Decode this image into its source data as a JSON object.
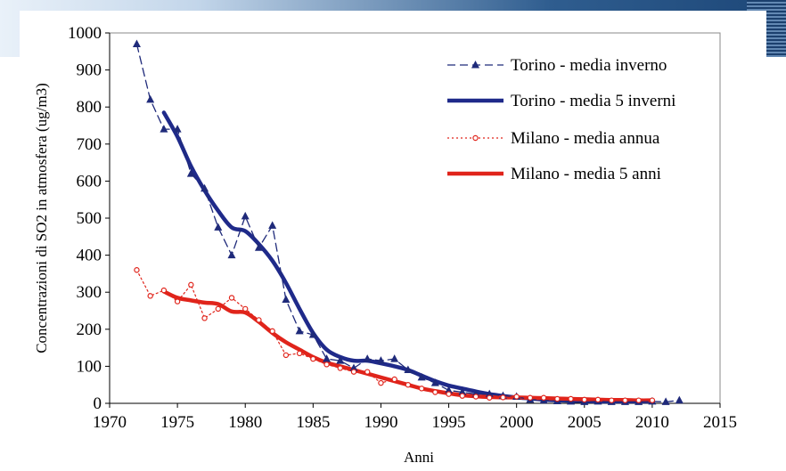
{
  "chart_data": {
    "type": "line",
    "title": "",
    "xlabel": "Anni",
    "ylabel": "Concentrazioni di SO2 in atmosfera (ug/m3)",
    "xlim": [
      1970,
      2015
    ],
    "ylim": [
      0,
      1000
    ],
    "x_ticks": [
      1970,
      1975,
      1980,
      1985,
      1990,
      1995,
      2000,
      2005,
      2010,
      2015
    ],
    "y_ticks": [
      0,
      100,
      200,
      300,
      400,
      500,
      600,
      700,
      800,
      900,
      1000
    ],
    "grid": false,
    "legend_position": "top-right",
    "series": [
      {
        "name": "Torino - media inverno",
        "color": "#1f2a7a",
        "style": "dashed",
        "marker": "triangle",
        "points": [
          [
            1972,
            970
          ],
          [
            1973,
            820
          ],
          [
            1974,
            740
          ],
          [
            1975,
            740
          ],
          [
            1976,
            620
          ],
          [
            1977,
            580
          ],
          [
            1978,
            475
          ],
          [
            1979,
            400
          ],
          [
            1980,
            505
          ],
          [
            1981,
            420
          ],
          [
            1982,
            480
          ],
          [
            1983,
            280
          ],
          [
            1984,
            195
          ],
          [
            1985,
            185
          ],
          [
            1986,
            120
          ],
          [
            1987,
            115
          ],
          [
            1988,
            95
          ],
          [
            1989,
            120
          ],
          [
            1990,
            115
          ],
          [
            1991,
            120
          ],
          [
            1992,
            90
          ],
          [
            1993,
            70
          ],
          [
            1994,
            55
          ],
          [
            1995,
            35
          ],
          [
            1996,
            30
          ],
          [
            1997,
            25
          ],
          [
            1998,
            25
          ],
          [
            1999,
            20
          ],
          [
            2000,
            18
          ],
          [
            2001,
            10
          ],
          [
            2002,
            8
          ],
          [
            2003,
            6
          ],
          [
            2004,
            5
          ],
          [
            2005,
            4
          ],
          [
            2006,
            5
          ],
          [
            2007,
            4
          ],
          [
            2008,
            4
          ],
          [
            2009,
            4
          ],
          [
            2010,
            5
          ],
          [
            2011,
            4
          ],
          [
            2012,
            8
          ]
        ]
      },
      {
        "name": "Torino - media 5 inverni",
        "color": "#1f2a8a",
        "style": "solid-thick",
        "marker": "none",
        "points": [
          [
            1974,
            785
          ],
          [
            1975,
            720
          ],
          [
            1976,
            640
          ],
          [
            1977,
            575
          ],
          [
            1978,
            520
          ],
          [
            1979,
            475
          ],
          [
            1980,
            465
          ],
          [
            1981,
            430
          ],
          [
            1982,
            385
          ],
          [
            1983,
            325
          ],
          [
            1984,
            255
          ],
          [
            1985,
            190
          ],
          [
            1986,
            145
          ],
          [
            1987,
            125
          ],
          [
            1988,
            115
          ],
          [
            1989,
            115
          ],
          [
            1990,
            108
          ],
          [
            1991,
            100
          ],
          [
            1992,
            90
          ],
          [
            1993,
            75
          ],
          [
            1994,
            60
          ],
          [
            1995,
            48
          ],
          [
            1996,
            40
          ],
          [
            1997,
            32
          ],
          [
            1998,
            25
          ],
          [
            1999,
            20
          ],
          [
            2000,
            16
          ],
          [
            2001,
            13
          ],
          [
            2002,
            10
          ],
          [
            2003,
            8
          ],
          [
            2004,
            7
          ],
          [
            2005,
            6
          ],
          [
            2006,
            5
          ],
          [
            2007,
            5
          ],
          [
            2008,
            5
          ],
          [
            2009,
            5
          ],
          [
            2010,
            5
          ]
        ]
      },
      {
        "name": "Milano - media annua",
        "color": "#e0241b",
        "style": "dotted",
        "marker": "circle",
        "points": [
          [
            1972,
            360
          ],
          [
            1973,
            290
          ],
          [
            1974,
            305
          ],
          [
            1975,
            275
          ],
          [
            1976,
            320
          ],
          [
            1977,
            230
          ],
          [
            1978,
            255
          ],
          [
            1979,
            285
          ],
          [
            1980,
            255
          ],
          [
            1981,
            225
          ],
          [
            1982,
            195
          ],
          [
            1983,
            130
          ],
          [
            1984,
            135
          ],
          [
            1985,
            120
          ],
          [
            1986,
            105
          ],
          [
            1987,
            95
          ],
          [
            1988,
            85
          ],
          [
            1989,
            85
          ],
          [
            1990,
            55
          ],
          [
            1991,
            65
          ],
          [
            1992,
            50
          ],
          [
            1993,
            40
          ],
          [
            1994,
            30
          ],
          [
            1995,
            25
          ],
          [
            1996,
            20
          ],
          [
            1997,
            18
          ],
          [
            1998,
            15
          ],
          [
            1999,
            16
          ],
          [
            2000,
            18
          ],
          [
            2001,
            15
          ],
          [
            2002,
            15
          ],
          [
            2003,
            12
          ],
          [
            2004,
            12
          ],
          [
            2005,
            10
          ],
          [
            2006,
            10
          ],
          [
            2007,
            8
          ],
          [
            2008,
            8
          ],
          [
            2009,
            8
          ],
          [
            2010,
            8
          ]
        ]
      },
      {
        "name": "Milano - media 5 anni",
        "color": "#e0241b",
        "style": "solid-thick",
        "marker": "none",
        "points": [
          [
            1974,
            302
          ],
          [
            1975,
            285
          ],
          [
            1976,
            278
          ],
          [
            1977,
            272
          ],
          [
            1978,
            268
          ],
          [
            1979,
            248
          ],
          [
            1980,
            245
          ],
          [
            1981,
            220
          ],
          [
            1982,
            190
          ],
          [
            1983,
            165
          ],
          [
            1984,
            145
          ],
          [
            1985,
            125
          ],
          [
            1986,
            110
          ],
          [
            1987,
            100
          ],
          [
            1988,
            90
          ],
          [
            1989,
            80
          ],
          [
            1990,
            70
          ],
          [
            1991,
            60
          ],
          [
            1992,
            50
          ],
          [
            1993,
            40
          ],
          [
            1994,
            33
          ],
          [
            1995,
            27
          ],
          [
            1996,
            22
          ],
          [
            1997,
            19
          ],
          [
            1998,
            17
          ],
          [
            1999,
            16
          ],
          [
            2000,
            16
          ],
          [
            2001,
            15
          ],
          [
            2002,
            14
          ],
          [
            2003,
            13
          ],
          [
            2004,
            12
          ],
          [
            2005,
            11
          ],
          [
            2006,
            10
          ],
          [
            2007,
            9
          ],
          [
            2008,
            9
          ],
          [
            2009,
            8
          ],
          [
            2010,
            8
          ]
        ]
      }
    ]
  }
}
